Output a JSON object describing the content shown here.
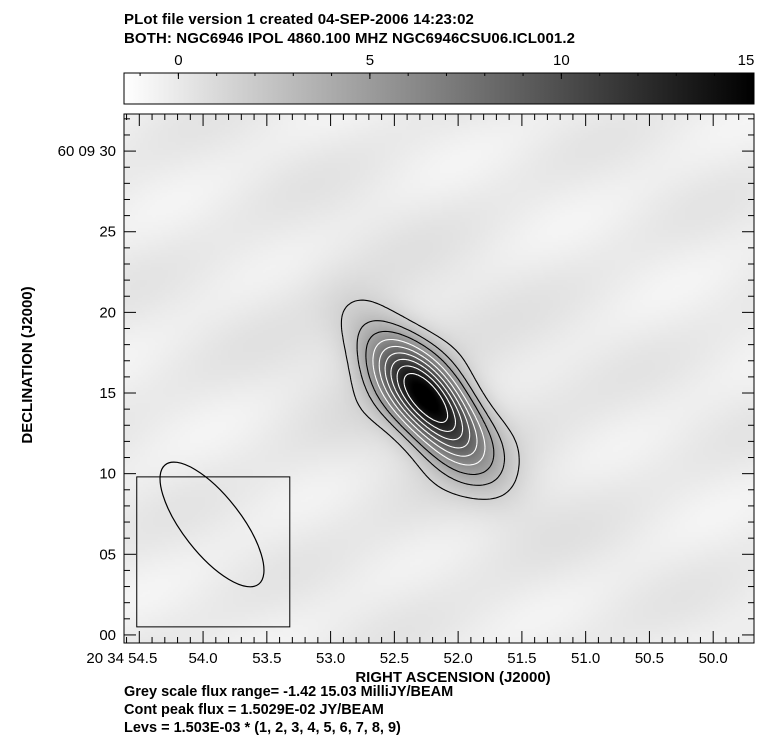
{
  "header": {
    "line1": "PLot file version 1  created 04-SEP-2006 14:23:02",
    "line2": "BOTH: NGC6946  IPOL  4860.100 MHZ  NGC6946CSU06.ICL001.2"
  },
  "footer": {
    "line1": "Grey scale flux range= -1.42 15.03 MilliJY/BEAM",
    "line2": "Cont peak flux =  1.5029E-02 JY/BEAM",
    "line3": "Levs = 1.503E-03 * (1, 2, 3, 4, 5, 6, 7, 8, 9)"
  },
  "chart_data": {
    "type": "heatmap",
    "xlabel": "RIGHT ASCENSION (J2000)",
    "ylabel": "DECLINATION (J2000)",
    "x_ticks": [
      {
        "value": 54.5,
        "label": "20 34 54.5"
      },
      {
        "value": 54.0,
        "label": "54.0"
      },
      {
        "value": 53.5,
        "label": "53.5"
      },
      {
        "value": 53.0,
        "label": "53.0"
      },
      {
        "value": 52.5,
        "label": "52.5"
      },
      {
        "value": 52.0,
        "label": "52.0"
      },
      {
        "value": 51.5,
        "label": "51.5"
      },
      {
        "value": 51.0,
        "label": "51.0"
      },
      {
        "value": 50.5,
        "label": "50.5"
      },
      {
        "value": 50.0,
        "label": "50.0"
      }
    ],
    "y_ticks": [
      {
        "value": 30,
        "label": "60 09 30"
      },
      {
        "value": 25,
        "label": "25"
      },
      {
        "value": 20,
        "label": "20"
      },
      {
        "value": 15,
        "label": "15"
      },
      {
        "value": 10,
        "label": "10"
      },
      {
        "value": 5,
        "label": "05"
      },
      {
        "value": 0,
        "label": "00"
      }
    ],
    "xlim": [
      54.62,
      49.68
    ],
    "ylim": [
      -0.5,
      32.3
    ],
    "colorbar": {
      "range": [
        -1.42,
        15.03
      ],
      "ticks": [
        {
          "value": 0,
          "label": "0"
        },
        {
          "value": 5,
          "label": "5"
        },
        {
          "value": 10,
          "label": "10"
        },
        {
          "value": 15,
          "label": "15"
        }
      ],
      "units": "MilliJY/BEAM"
    },
    "source": {
      "ra": 52.24,
      "dec": 14.6,
      "peak_mJy": 15.03,
      "sigma_major_arcsec": 3.3,
      "sigma_minor_arcsec": 1.35,
      "pa_deg": 38
    },
    "contour_base_mJy": 1.503,
    "contour_levels": [
      1,
      2,
      3,
      4,
      5,
      6,
      7,
      8,
      9
    ],
    "beam": {
      "center_ra": 53.93,
      "center_dec": 6.85,
      "major_arcsec": 9.4,
      "minor_arcsec": 3.6,
      "pa_deg": 38
    },
    "beam_box": {
      "ra_min": 53.32,
      "ra_max": 54.52,
      "dec_min": 0.5,
      "dec_max": 9.8
    }
  }
}
